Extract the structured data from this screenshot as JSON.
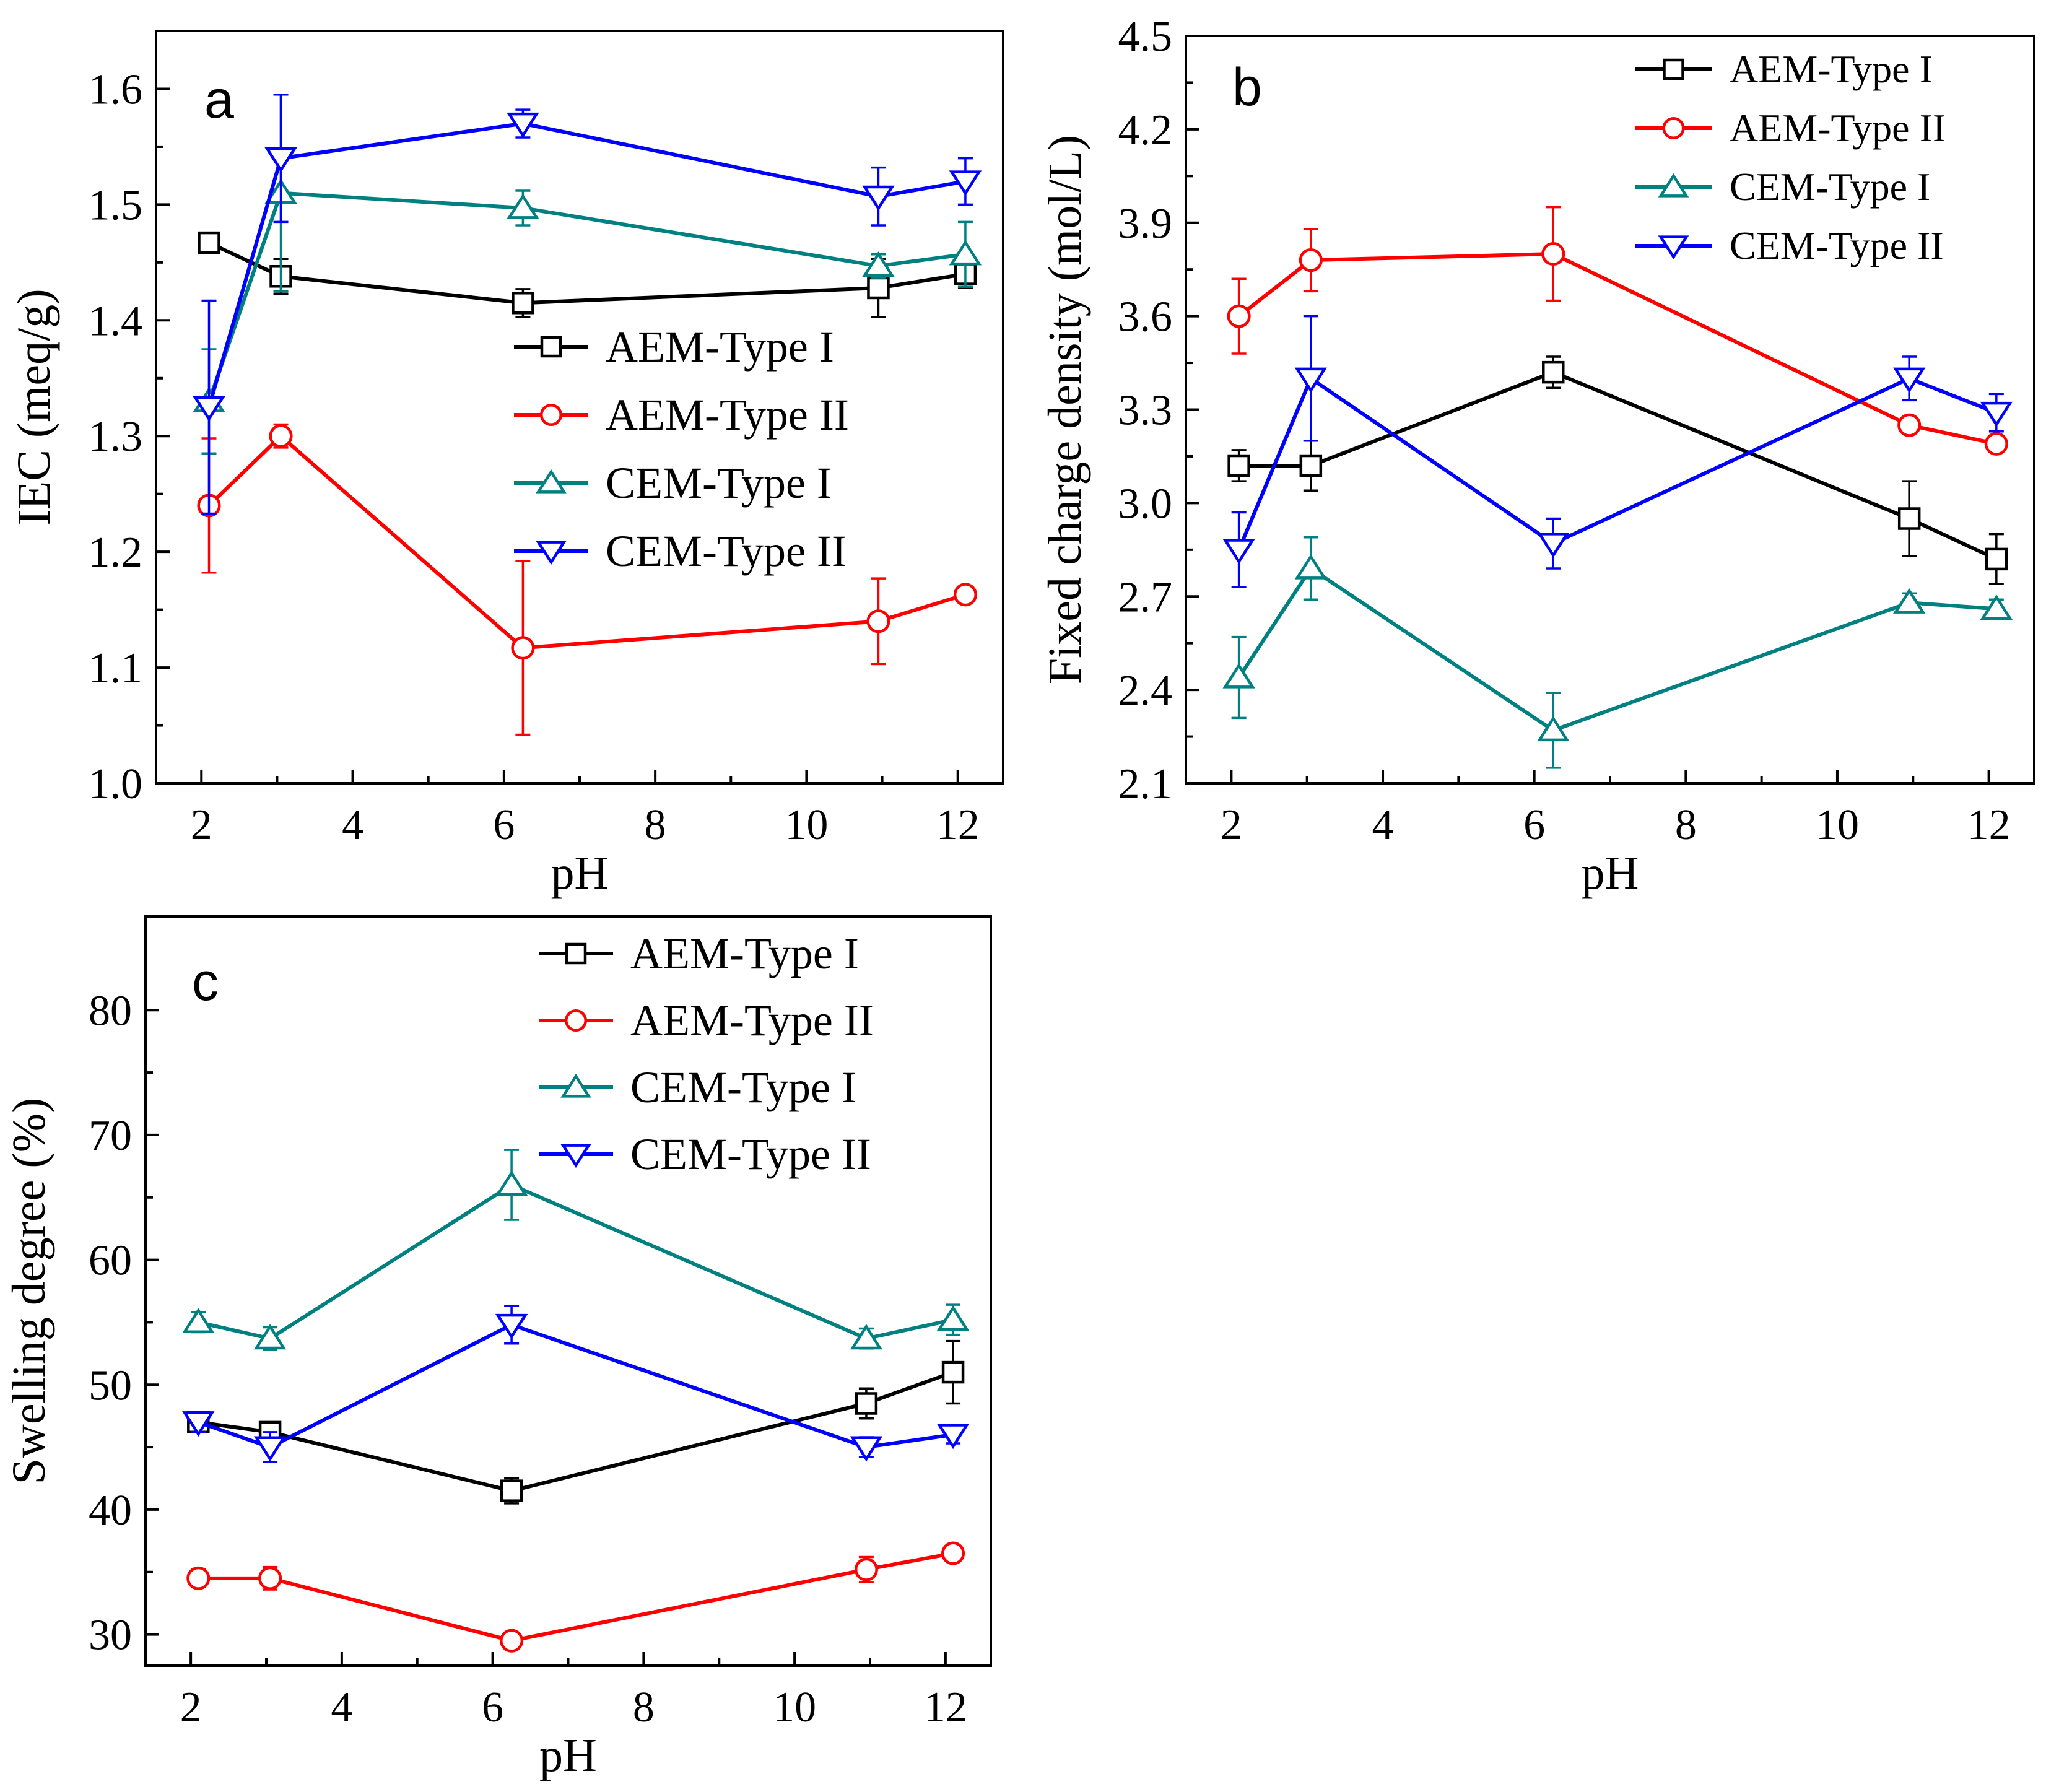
{
  "figure": {
    "panels": [
      "a",
      "b",
      "c"
    ]
  },
  "series_styles": {
    "AEM-Type I": {
      "color": "#000000",
      "marker": "square"
    },
    "AEM-Type II": {
      "color": "#ff0000",
      "marker": "circle"
    },
    "CEM-Type I": {
      "color": "#008080",
      "marker": "triangle-up"
    },
    "CEM-Type II": {
      "color": "#0000ff",
      "marker": "triangle-down"
    }
  },
  "chart_data": [
    {
      "id": "a",
      "type": "line",
      "panel_label": "a",
      "title": "",
      "xlabel": "pH",
      "ylabel": "IEC (meq/g)",
      "xlim": [
        1.4,
        12.6
      ],
      "ylim": [
        1.0,
        1.65
      ],
      "xticks": [
        2,
        4,
        6,
        8,
        10,
        12
      ],
      "yticks": [
        1.0,
        1.1,
        1.2,
        1.3,
        1.4,
        1.5,
        1.6
      ],
      "ytick_labels": [
        "1.0",
        "1.1",
        "1.2",
        "1.3",
        "1.4",
        "1.5",
        "1.6"
      ],
      "x": [
        2.1,
        3.05,
        6.25,
        10.95,
        12.1
      ],
      "legend": {
        "position": "center-right",
        "entries": [
          "AEM-Type I",
          "AEM-Type II",
          "CEM-Type I",
          "CEM-Type II"
        ]
      },
      "series": [
        {
          "name": "AEM-Type I",
          "values": [
            1.467,
            1.438,
            1.415,
            1.428,
            1.44
          ],
          "errors": [
            0.005,
            0.015,
            0.012,
            0.025,
            0.012
          ]
        },
        {
          "name": "AEM-Type II",
          "values": [
            1.24,
            1.3,
            1.117,
            1.14,
            1.163
          ],
          "errors": [
            0.058,
            0.01,
            0.075,
            0.037,
            0.005
          ]
        },
        {
          "name": "CEM-Type I",
          "values": [
            1.33,
            1.51,
            1.497,
            1.447,
            1.457
          ],
          "errors": [
            0.045,
            0.085,
            0.015,
            0.01,
            0.028
          ]
        },
        {
          "name": "CEM-Type II",
          "values": [
            1.325,
            1.54,
            1.57,
            1.507,
            1.52
          ],
          "errors": [
            0.092,
            0.055,
            0.012,
            0.025,
            0.02
          ]
        }
      ]
    },
    {
      "id": "b",
      "type": "line",
      "panel_label": "b",
      "title": "",
      "xlabel": "pH",
      "ylabel": "Fixed charge density (mol/L)",
      "xlim": [
        1.4,
        12.6
      ],
      "ylim": [
        2.1,
        4.5
      ],
      "xticks": [
        2,
        4,
        6,
        8,
        10,
        12
      ],
      "yticks": [
        2.1,
        2.4,
        2.7,
        3.0,
        3.3,
        3.6,
        3.9,
        4.2,
        4.5
      ],
      "ytick_labels": [
        "2.1",
        "2.4",
        "2.7",
        "3.0",
        "3.3",
        "3.6",
        "3.9",
        "4.2",
        "4.5"
      ],
      "x": [
        2.1,
        3.05,
        6.25,
        10.95,
        12.1
      ],
      "legend": {
        "position": "top-right",
        "entries": [
          "AEM-Type I",
          "AEM-Type II",
          "CEM-Type I",
          "CEM-Type II"
        ]
      },
      "series": [
        {
          "name": "AEM-Type I",
          "values": [
            3.12,
            3.12,
            3.42,
            2.95,
            2.82
          ],
          "errors": [
            0.05,
            0.08,
            0.05,
            0.12,
            0.08
          ]
        },
        {
          "name": "AEM-Type II",
          "values": [
            3.6,
            3.78,
            3.8,
            3.25,
            3.19
          ],
          "errors": [
            0.12,
            0.1,
            0.15,
            0.02,
            0.02
          ]
        },
        {
          "name": "CEM-Type I",
          "values": [
            2.44,
            2.79,
            2.27,
            2.68,
            2.66
          ],
          "errors": [
            0.13,
            0.1,
            0.12,
            0.03,
            0.03
          ]
        },
        {
          "name": "CEM-Type II",
          "values": [
            2.85,
            3.4,
            2.87,
            3.4,
            3.29
          ],
          "errors": [
            0.12,
            0.2,
            0.08,
            0.07,
            0.06
          ]
        }
      ]
    },
    {
      "id": "c",
      "type": "line",
      "panel_label": "c",
      "title": "",
      "xlabel": "pH",
      "ylabel": "Swelling degree (%)",
      "xlim": [
        1.4,
        12.6
      ],
      "ylim": [
        27.5,
        87.5
      ],
      "xticks": [
        2,
        4,
        6,
        8,
        10,
        12
      ],
      "yticks": [
        30,
        40,
        50,
        60,
        70,
        80
      ],
      "ytick_labels": [
        "30",
        "40",
        "50",
        "60",
        "70",
        "80"
      ],
      "x": [
        2.1,
        3.05,
        6.25,
        10.95,
        12.1
      ],
      "legend": {
        "position": "top-right",
        "entries": [
          "AEM-Type I",
          "AEM-Type II",
          "CEM-Type I",
          "CEM-Type II"
        ]
      },
      "series": [
        {
          "name": "AEM-Type I",
          "values": [
            47,
            46.2,
            41.5,
            48.5,
            51
          ],
          "errors": [
            0.8,
            0.8,
            1.0,
            1.2,
            2.5
          ]
        },
        {
          "name": "AEM-Type II",
          "values": [
            34.5,
            34.5,
            29.5,
            35.2,
            36.5
          ],
          "errors": [
            0.7,
            0.9,
            0.5,
            1.0,
            0.6
          ]
        },
        {
          "name": "CEM-Type I",
          "values": [
            55,
            53.7,
            66,
            53.7,
            55.2
          ],
          "errors": [
            0.8,
            0.9,
            2.8,
            0.8,
            1.2
          ]
        },
        {
          "name": "CEM-Type II",
          "values": [
            47,
            45,
            54.8,
            45,
            46
          ],
          "errors": [
            0.8,
            1.2,
            1.5,
            0.8,
            0.7
          ]
        }
      ]
    }
  ]
}
